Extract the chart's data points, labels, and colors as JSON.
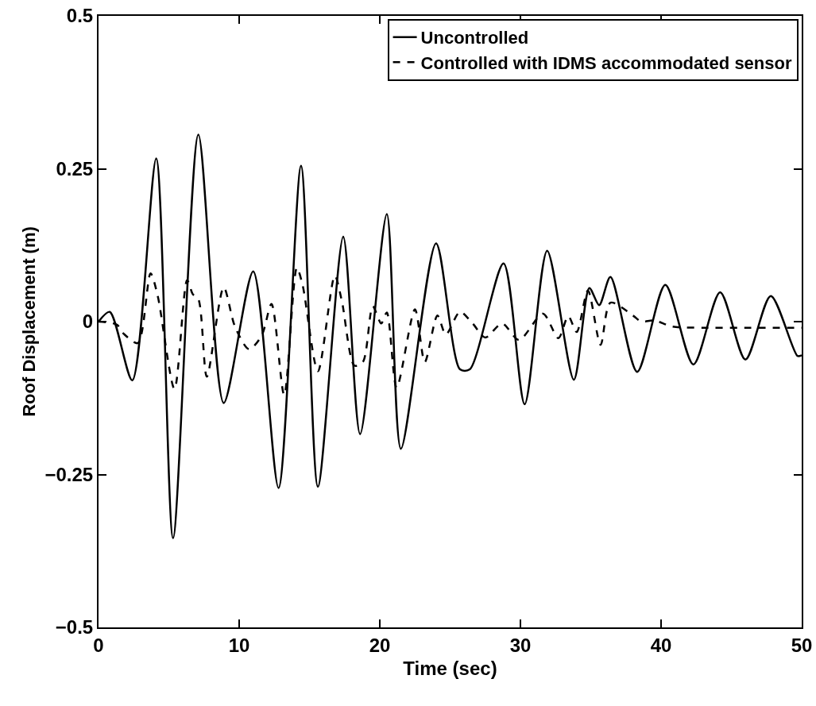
{
  "chart_data": {
    "type": "line",
    "xlabel": "Time (sec)",
    "ylabel": "Roof Displacement (m)",
    "xlim": [
      0,
      50
    ],
    "ylim": [
      -0.5,
      0.5
    ],
    "xticks": [
      0,
      10,
      20,
      30,
      40,
      50
    ],
    "yticks": [
      {
        "value": -0.5,
        "label": "−0.5"
      },
      {
        "value": -0.25,
        "label": "−0.25"
      },
      0,
      0.25,
      0.5
    ],
    "grid": false,
    "legend": "top right",
    "marker": "none",
    "series": [
      {
        "name": "Uncontrolled",
        "color": "#000000",
        "line_style": "solid",
        "x": [
          0,
          0.8,
          2.4,
          4.1,
          5.3,
          7.1,
          8.9,
          11.0,
          12.8,
          14.4,
          15.6,
          17.4,
          18.6,
          20.5,
          21.5,
          24.0,
          25.7,
          26.4,
          28.8,
          30.3,
          31.9,
          33.8,
          34.9,
          35.6,
          36.4,
          38.3,
          40.3,
          42.3,
          44.2,
          46.0,
          47.8,
          49.7,
          50
        ],
        "values": [
          0,
          0.016,
          -0.096,
          0.267,
          -0.354,
          0.306,
          -0.133,
          0.082,
          -0.272,
          0.255,
          -0.27,
          0.139,
          -0.184,
          0.176,
          -0.208,
          0.128,
          -0.078,
          -0.078,
          0.095,
          -0.135,
          0.116,
          -0.095,
          0.055,
          0.027,
          0.073,
          -0.082,
          0.06,
          -0.07,
          0.048,
          -0.062,
          0.042,
          -0.056,
          -0.055
        ]
      },
      {
        "name": "Controlled with IDMS accommodated sensor",
        "color": "#000000",
        "line_style": "dashed",
        "x": [
          0,
          1.3,
          1.8,
          2.8,
          3.7,
          4.2,
          5.4,
          6.3,
          6.7,
          7.1,
          7.7,
          8.9,
          9.7,
          10.7,
          11.6,
          12.3,
          13.2,
          14.1,
          14.5,
          15.6,
          16.8,
          17.3,
          18.2,
          18.8,
          19.5,
          20.1,
          20.5,
          21.2,
          22.5,
          23.2,
          24.1,
          24.7,
          25.7,
          26.6,
          27.5,
          28.7,
          29.9,
          31.6,
          32.7,
          33.4,
          34.0,
          34.8,
          35.7,
          36.4,
          38.0,
          38.6,
          39.5,
          40.8,
          43,
          46,
          50
        ],
        "values": [
          0,
          -0.005,
          -0.02,
          -0.035,
          0.079,
          0.043,
          -0.11,
          0.068,
          0.045,
          0.037,
          -0.09,
          0.056,
          -0.008,
          -0.045,
          -0.023,
          0.029,
          -0.12,
          0.088,
          0.061,
          -0.081,
          0.075,
          0.034,
          -0.072,
          -0.066,
          0.025,
          -0.003,
          0.015,
          -0.108,
          0.02,
          -0.066,
          0.01,
          -0.021,
          0.016,
          -0.003,
          -0.026,
          -0.003,
          -0.03,
          0.013,
          -0.027,
          0.009,
          -0.017,
          0.051,
          -0.038,
          0.031,
          0.01,
          0,
          0.002,
          -0.008,
          -0.01,
          -0.01,
          -0.01
        ]
      }
    ]
  }
}
